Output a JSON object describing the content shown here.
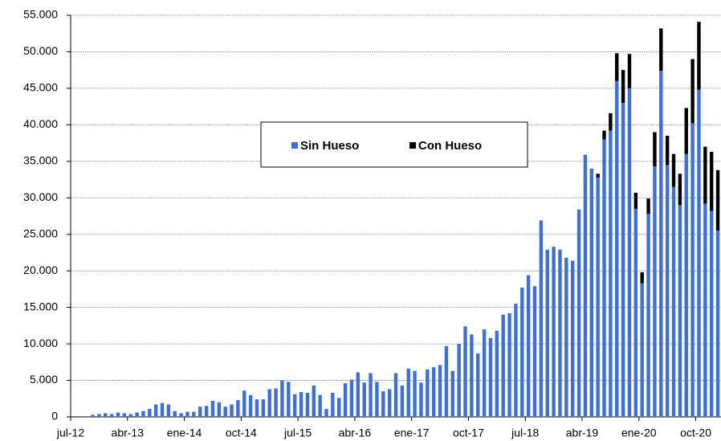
{
  "chart_data": {
    "type": "stacked-bar",
    "categories": [
      "jul-12",
      null,
      null,
      null,
      null,
      null,
      null,
      null,
      null,
      "abr-13",
      null,
      null,
      null,
      null,
      null,
      null,
      null,
      null,
      "ene-14",
      null,
      null,
      null,
      null,
      null,
      null,
      null,
      null,
      "oct-14",
      null,
      null,
      null,
      null,
      null,
      null,
      null,
      null,
      "jul-15",
      null,
      null,
      null,
      null,
      null,
      null,
      null,
      null,
      "abr-16",
      null,
      null,
      null,
      null,
      null,
      null,
      null,
      null,
      "ene-17",
      null,
      null,
      null,
      null,
      null,
      null,
      null,
      null,
      "oct-17",
      null,
      null,
      null,
      null,
      null,
      null,
      null,
      null,
      "jul-18",
      null,
      null,
      null,
      null,
      null,
      null,
      null,
      null,
      "abr-19",
      null,
      null,
      null,
      null,
      null,
      null,
      null,
      null,
      "ene-20",
      null,
      null,
      null,
      null,
      null,
      null,
      null,
      null,
      "oct-20",
      null,
      null,
      null
    ],
    "series": [
      {
        "name": "Sin Hueso",
        "color": "#3b6ee3",
        "values": [
          0,
          0,
          0,
          300,
          400,
          500,
          400,
          600,
          500,
          400,
          600,
          800,
          1100,
          1700,
          1900,
          1700,
          800,
          500,
          700,
          700,
          1400,
          1500,
          2200,
          2000,
          1400,
          1700,
          2300,
          3600,
          3000,
          2400,
          2400,
          3800,
          3900,
          5000,
          4800,
          3100,
          3400,
          3300,
          4300,
          3000,
          1100,
          3300,
          2600,
          4600,
          5100,
          6100,
          4700,
          6000,
          4800,
          3500,
          3800,
          6000,
          4300,
          6600,
          6300,
          4700,
          6500,
          6800,
          7100,
          9700,
          6300,
          10000,
          12400,
          11300,
          8700,
          12000,
          10800,
          11800,
          14000,
          14200,
          15500,
          17700,
          19400,
          17900,
          26900,
          22900,
          23300,
          22900,
          21800,
          21400,
          28400,
          35900,
          34000,
          32800,
          38000,
          39200,
          46000,
          43000,
          45000,
          28500,
          18300,
          27800,
          34300,
          47400,
          34500,
          31500,
          29000,
          36000,
          40200,
          44800,
          29200,
          28200,
          25500
        ]
      },
      {
        "name": "Con Hueso",
        "color": "#000000",
        "values": [
          0,
          0,
          0,
          0,
          0,
          0,
          0,
          0,
          0,
          0,
          0,
          0,
          0,
          0,
          0,
          0,
          0,
          0,
          0,
          0,
          0,
          0,
          0,
          0,
          0,
          0,
          0,
          0,
          0,
          0,
          0,
          0,
          0,
          0,
          0,
          0,
          0,
          0,
          0,
          0,
          0,
          0,
          0,
          0,
          0,
          0,
          0,
          0,
          0,
          0,
          0,
          0,
          0,
          0,
          0,
          0,
          0,
          0,
          0,
          0,
          0,
          0,
          0,
          0,
          0,
          0,
          0,
          0,
          0,
          0,
          0,
          0,
          0,
          0,
          0,
          0,
          0,
          0,
          0,
          0,
          0,
          0,
          0,
          500,
          1200,
          2400,
          3800,
          4500,
          4700,
          2200,
          1500,
          2100,
          4700,
          5800,
          4000,
          4500,
          4300,
          6300,
          8800,
          9300,
          7800,
          8100,
          8300
        ]
      }
    ],
    "ylim": [
      0,
      55000
    ],
    "yticks": [
      0,
      {
        "value": 5000,
        "label": "5.000"
      },
      {
        "value": 10000,
        "label": "10.000"
      },
      {
        "value": 15000,
        "label": "15.000"
      },
      {
        "value": 20000,
        "label": "20.000"
      },
      {
        "value": 25000,
        "label": "25.000"
      },
      {
        "value": 30000,
        "label": "30.000"
      },
      {
        "value": 35000,
        "label": "35.000"
      },
      {
        "value": 40000,
        "label": "40.000"
      },
      {
        "value": 45000,
        "label": "45.000"
      },
      {
        "value": 50000,
        "label": "50.000"
      },
      {
        "value": 55000,
        "label": "55.000"
      }
    ],
    "grid": true
  }
}
